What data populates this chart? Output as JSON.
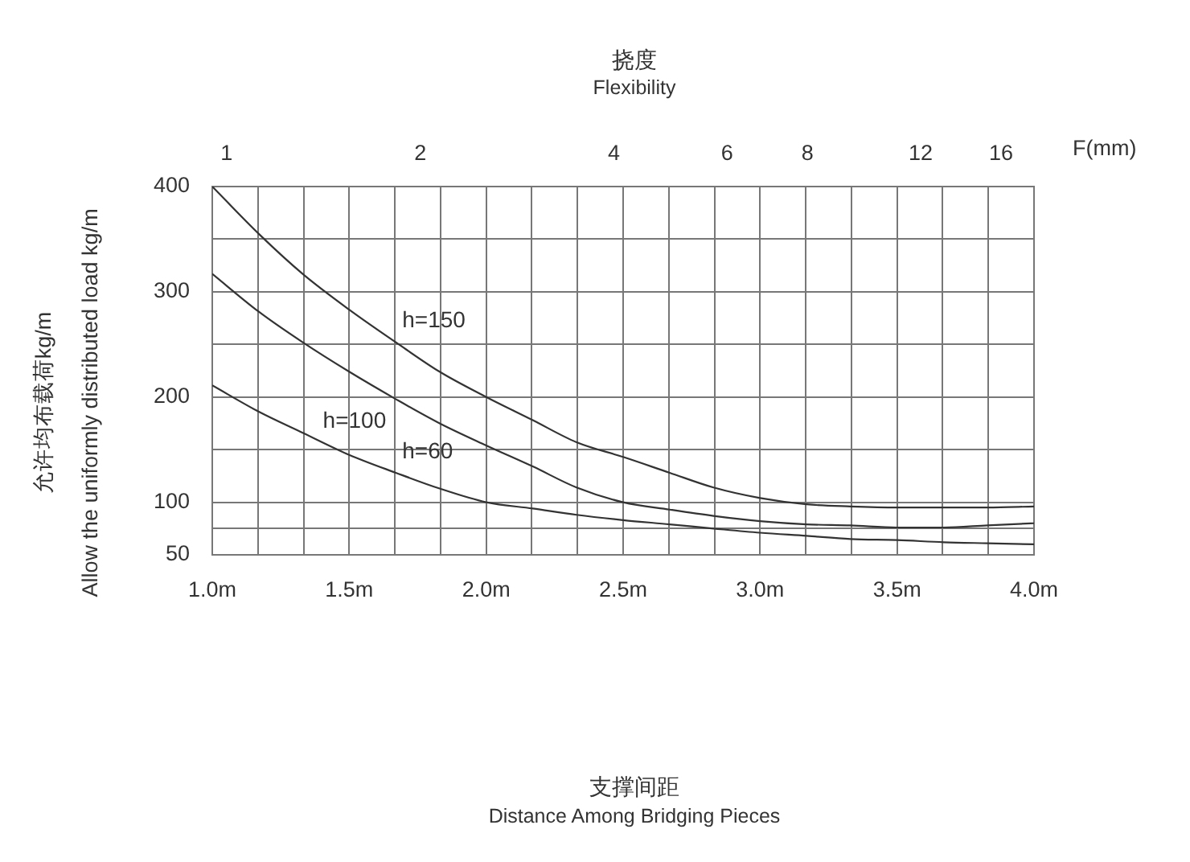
{
  "chart_data": {
    "type": "line",
    "title": "挠度",
    "subtitle": "Flexibility",
    "x2label": "F(mm)",
    "ylabel": "允许均布载荷kg/m\nAllow the uniformly distributed load kg/m",
    "x": [
      1,
      1.17,
      1.33,
      1.5,
      1.67,
      1.83,
      2,
      2.17,
      2.33,
      2.5,
      2.67,
      2.83,
      3,
      3.17,
      3.33,
      3.5,
      3.67,
      3.83,
      4
    ],
    "series": [
      {
        "name": "h=150",
        "color": "#333333",
        "values": [
          400,
          355,
          317,
          283,
          252,
          224,
          200,
          178,
          157,
          143,
          128,
          114,
          104,
          98,
          96,
          95,
          95,
          95,
          96
        ]
      },
      {
        "name": "h=100",
        "color": "#333333",
        "values": [
          317,
          281,
          252,
          224,
          198,
          175,
          154,
          134,
          114,
          100,
          93,
          87,
          82,
          79,
          78,
          76,
          76,
          78,
          80
        ]
      },
      {
        "name": "h=60",
        "color": "#333333",
        "values": [
          211,
          186,
          166,
          145,
          128,
          113,
          100,
          94,
          88,
          83,
          79,
          75,
          71,
          68,
          65,
          64,
          62,
          61,
          60
        ]
      }
    ],
    "annotations": [
      "支撑间距",
      "Distance Among Bridging Pieces"
    ],
    "xlim": [
      1,
      4
    ],
    "xticks": [
      {
        "value": 1,
        "label": "1.0m"
      },
      {
        "value": 1.1667,
        "label": null
      },
      {
        "value": 1.3333,
        "label": null
      },
      {
        "value": 1.5,
        "label": "1.5m"
      },
      {
        "value": 1.6667,
        "label": null
      },
      {
        "value": 1.8333,
        "label": null
      },
      {
        "value": 2,
        "label": "2.0m"
      },
      {
        "value": 2.1667,
        "label": null
      },
      {
        "value": 2.3333,
        "label": null
      },
      {
        "value": 2.5,
        "label": "2.5m"
      },
      {
        "value": 2.6667,
        "label": null
      },
      {
        "value": 2.8333,
        "label": null
      },
      {
        "value": 3,
        "label": "3.0m"
      },
      {
        "value": 3.1667,
        "label": null
      },
      {
        "value": 3.3333,
        "label": null
      },
      {
        "value": 3.5,
        "label": "3.5m"
      },
      {
        "value": 3.6667,
        "label": null
      },
      {
        "value": 3.8333,
        "label": null
      },
      {
        "value": 4,
        "label": "4.0m"
      }
    ],
    "x2lim": [
      0.95,
      18
    ],
    "x2ticks": [
      1,
      2,
      4,
      6,
      8,
      12,
      16
    ],
    "log": "x2",
    "ylim": [
      50,
      400
    ],
    "yticks": [
      50,
      {
        "value": 75,
        "label": null
      },
      100,
      {
        "value": 150,
        "label": null
      },
      200,
      {
        "value": 250,
        "label": null
      },
      300,
      {
        "value": 350,
        "label": null
      },
      400
    ],
    "grid": true,
    "legend": false,
    "marker": "none",
    "line_style": "solid"
  }
}
